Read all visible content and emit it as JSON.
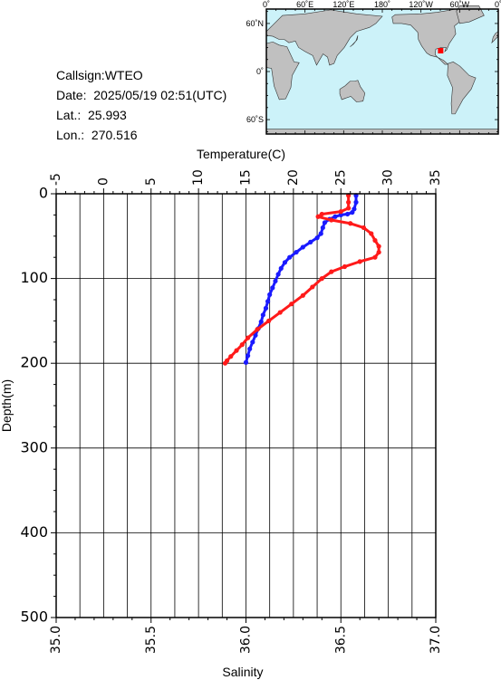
{
  "info": {
    "callsign": "Callsign:WTEO",
    "date": "Date:  2025/05/19 02:51(UTC)",
    "lat": "Lat.:  25.993",
    "lon": "Lon.:  270.516"
  },
  "map": {
    "x_ticks": [
      "0˚",
      "60˚E",
      "120˚E",
      "180˚",
      "120˚W",
      "60˚W",
      "0˚"
    ],
    "y_ticks": [
      "60˚N",
      "0˚",
      "60˚S"
    ],
    "ocean_color": "#ccf2f9",
    "land_color": "#c0c0c0",
    "marker_color": "#ff0000",
    "marker_lon": 270.516,
    "marker_lat": 25.993
  },
  "chart_data": {
    "type": "line",
    "title": "",
    "ylabel": "Depth(m)",
    "ylim": [
      0,
      500
    ],
    "y_inverted": true,
    "y_ticks": [
      0,
      100,
      200,
      300,
      400,
      500
    ],
    "grid": true,
    "top_axis": {
      "label": "Temperature(C)",
      "range": [
        -5,
        35
      ],
      "ticks": [
        -5,
        0,
        5,
        10,
        15,
        20,
        25,
        30,
        35
      ]
    },
    "bottom_axis": {
      "label": "Salinity",
      "range": [
        35.0,
        37.0
      ],
      "ticks": [
        "35.0",
        "35.5",
        "36.0",
        "36.5",
        "37.0"
      ]
    },
    "series": [
      {
        "axis": "temperature",
        "color": "#1a1aff",
        "points": [
          [
            26.6,
            2
          ],
          [
            26.6,
            10
          ],
          [
            26.4,
            18
          ],
          [
            26.2,
            22
          ],
          [
            25.7,
            24
          ],
          [
            25.0,
            25
          ],
          [
            24.4,
            27
          ],
          [
            23.8,
            30
          ],
          [
            23.3,
            34
          ],
          [
            23.1,
            40
          ],
          [
            22.9,
            47
          ],
          [
            22.5,
            52
          ],
          [
            21.8,
            57
          ],
          [
            21.0,
            63
          ],
          [
            20.3,
            69
          ],
          [
            19.6,
            75
          ],
          [
            19.1,
            81
          ],
          [
            18.7,
            88
          ],
          [
            18.4,
            95
          ],
          [
            18.1,
            103
          ],
          [
            17.8,
            111
          ],
          [
            17.5,
            119
          ],
          [
            17.3,
            127
          ],
          [
            17.1,
            135
          ],
          [
            16.8,
            143
          ],
          [
            16.6,
            151
          ],
          [
            16.3,
            159
          ],
          [
            16.0,
            167
          ],
          [
            15.7,
            175
          ],
          [
            15.4,
            183
          ],
          [
            15.2,
            191
          ],
          [
            15.0,
            199
          ]
        ]
      },
      {
        "axis": "salinity",
        "color": "#ff1a1a",
        "points": [
          [
            36.54,
            2
          ],
          [
            36.54,
            10
          ],
          [
            36.54,
            17
          ],
          [
            36.5,
            21
          ],
          [
            36.4,
            24
          ],
          [
            36.38,
            27
          ],
          [
            36.45,
            31
          ],
          [
            36.55,
            35
          ],
          [
            36.62,
            40
          ],
          [
            36.66,
            47
          ],
          [
            36.68,
            55
          ],
          [
            36.7,
            62
          ],
          [
            36.7,
            69
          ],
          [
            36.68,
            75
          ],
          [
            36.6,
            80
          ],
          [
            36.52,
            86
          ],
          [
            36.45,
            92
          ],
          [
            36.4,
            100
          ],
          [
            36.35,
            110
          ],
          [
            36.3,
            120
          ],
          [
            36.24,
            130
          ],
          [
            36.18,
            140
          ],
          [
            36.12,
            150
          ],
          [
            36.06,
            160
          ],
          [
            36.01,
            170
          ],
          [
            35.98,
            178
          ],
          [
            35.95,
            185
          ],
          [
            35.92,
            192
          ],
          [
            35.9,
            197
          ],
          [
            35.89,
            200
          ]
        ]
      }
    ]
  }
}
